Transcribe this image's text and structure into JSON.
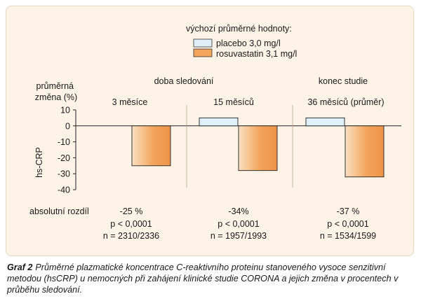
{
  "chart_data": {
    "type": "bar",
    "legend_title": "výchozí průměrné hodnoty:",
    "series": [
      {
        "name": "placebo 3,0 mg/l",
        "color": "#dff0fb",
        "values": [
          0,
          5,
          5
        ]
      },
      {
        "name": "rosuvastatin 3,1 mg/l",
        "color": "#f3a55c",
        "values": [
          -25,
          -28,
          -32
        ]
      }
    ],
    "categories": [
      "3 měsíce",
      "15 měsíců",
      "36 měsíců (průměr)"
    ],
    "group_headers": [
      "doba sledování",
      "konec studie"
    ],
    "ylabel_top": "průměrná změna (%)",
    "ylabel_side": "hs-CRP",
    "ylim": [
      -40,
      10
    ],
    "yticks": [
      "10",
      "0",
      "-10",
      "-20",
      "-30",
      "-40"
    ],
    "yticks_values": [
      10,
      0,
      -10,
      -20,
      -30,
      -40
    ],
    "legend_position": "top-right",
    "grid": false,
    "row_label": "absolutní rozdíl",
    "annotations": [
      {
        "diff": "-25 %",
        "p": "p < 0,0001",
        "n": "n = 2310/2336"
      },
      {
        "diff": "-34%",
        "p": "p < 0,0001",
        "n": "n = 1957/1993"
      },
      {
        "diff": "-37 %",
        "p": "p < 0,0001",
        "n": "n = 1534/1599"
      }
    ]
  },
  "caption": {
    "label": "Graf 2",
    "text": "Průměrné plazmatické koncentrace C-reaktivního proteinu stanoveného vysoce senzitivní metodou (hsCRP) u nemocných při zahájení klinické studie CORONA a jejich změna v procentech v průběhu sledování."
  }
}
